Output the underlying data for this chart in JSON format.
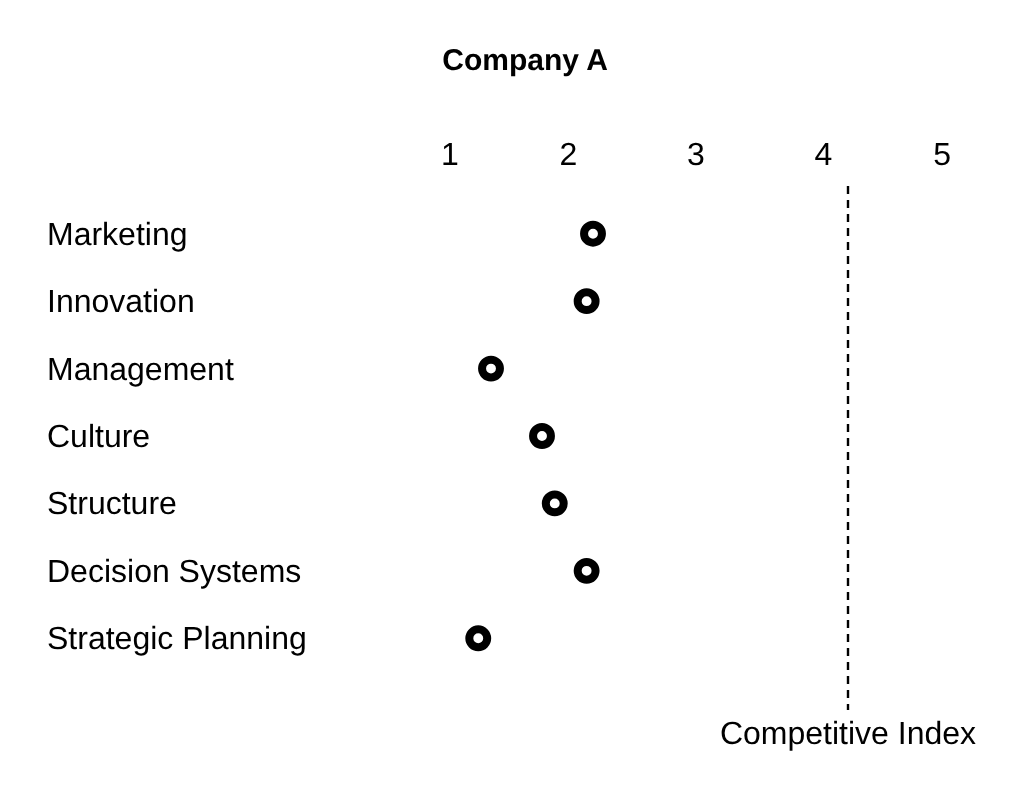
{
  "chart_data": {
    "type": "scatter",
    "title": "Company A",
    "orientation": "horizontal",
    "categories": [
      "Marketing",
      "Innovation",
      "Management",
      "Culture",
      "Structure",
      "Decision Systems",
      "Strategic Planning"
    ],
    "series": [
      {
        "color": "#000000",
        "values": [
          2.2,
          2.15,
          1.4,
          1.8,
          1.9,
          2.15,
          1.3
        ]
      }
    ],
    "xlim": [
      1,
      5
    ],
    "xticks": [
      1,
      2,
      3,
      4,
      5
    ],
    "grid": false,
    "marker": "circle",
    "ref_lines": [
      {
        "axis": "x",
        "value": 4.2,
        "label": "Competitive Index",
        "line_style": "dashed",
        "color": "#000000"
      }
    ]
  }
}
